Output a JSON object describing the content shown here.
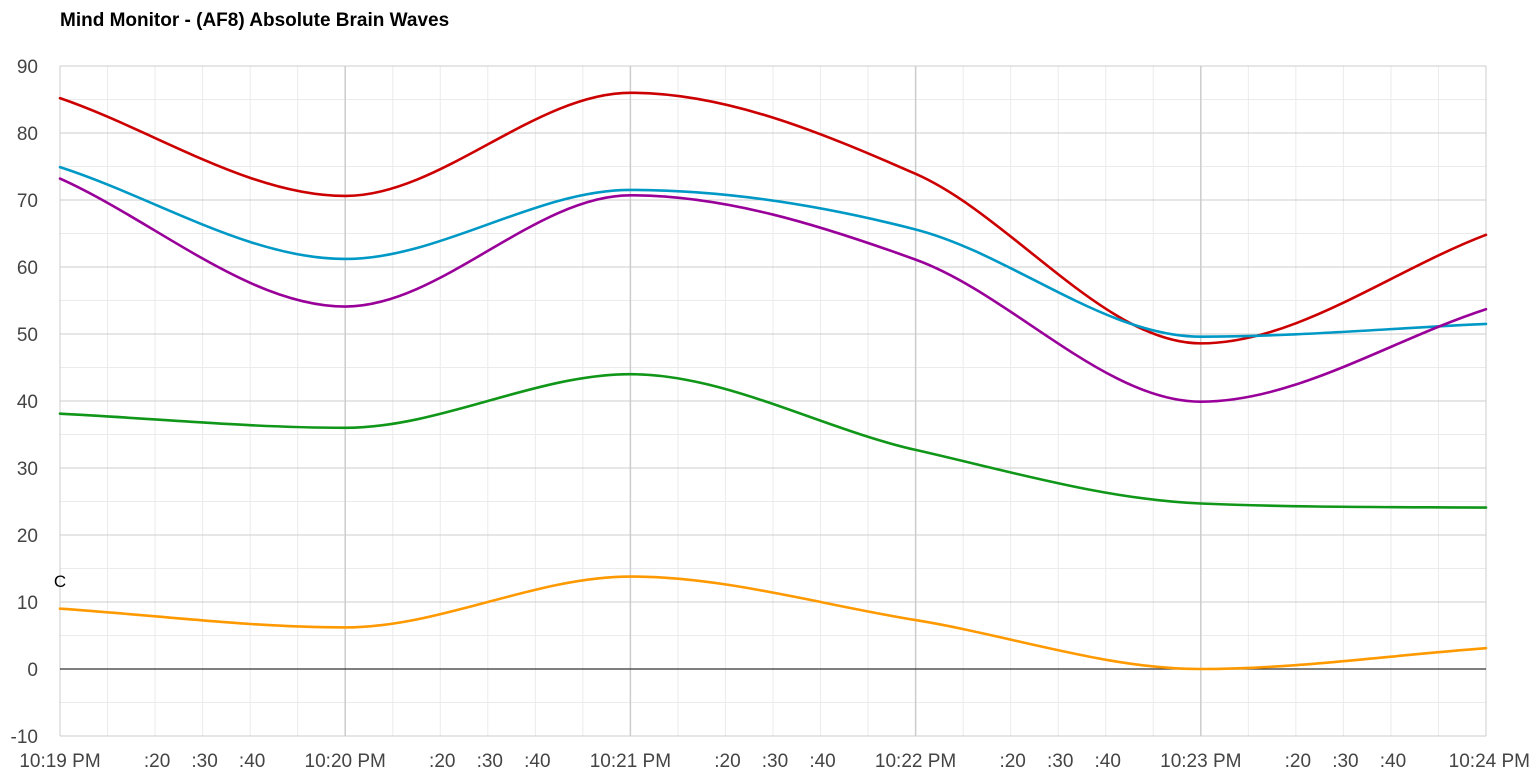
{
  "chart_data": {
    "type": "line",
    "title": "Mind Monitor - (AF8) Absolute Brain Waves",
    "xlabel": "",
    "ylabel": "",
    "ylim": [
      -10,
      90
    ],
    "y_ticks": [
      -10,
      0,
      10,
      20,
      30,
      40,
      50,
      60,
      70,
      80,
      90
    ],
    "y_tick_labels": [
      "-10",
      "0",
      "10",
      "20",
      "30",
      "40",
      "50",
      "60",
      "70",
      "80",
      "90"
    ],
    "xlim_seconds": [
      0,
      300
    ],
    "x_ticks": [
      {
        "t": 0,
        "label": "10:19 PM"
      },
      {
        "t": 20,
        "label": ":20"
      },
      {
        "t": 30,
        "label": ":30"
      },
      {
        "t": 40,
        "label": ":40"
      },
      {
        "t": 60,
        "label": "10:20 PM"
      },
      {
        "t": 80,
        "label": ":20"
      },
      {
        "t": 90,
        "label": ":30"
      },
      {
        "t": 100,
        "label": ":40"
      },
      {
        "t": 120,
        "label": "10:21 PM"
      },
      {
        "t": 140,
        "label": ":20"
      },
      {
        "t": 150,
        "label": ":30"
      },
      {
        "t": 160,
        "label": ":40"
      },
      {
        "t": 180,
        "label": "10:22 PM"
      },
      {
        "t": 200,
        "label": ":20"
      },
      {
        "t": 210,
        "label": ":30"
      },
      {
        "t": 220,
        "label": ":40"
      },
      {
        "t": 240,
        "label": "10:23 PM"
      },
      {
        "t": 260,
        "label": ":20"
      },
      {
        "t": 270,
        "label": ":30"
      },
      {
        "t": 280,
        "label": ":40"
      },
      {
        "t": 300,
        "label": "10:24 PM"
      }
    ],
    "minor_gridlines_every_seconds": 10,
    "minor_gridlines_every_value": 5,
    "major_vertical_gridlines_seconds": [
      60,
      120,
      180,
      240
    ],
    "x": [
      "10:19:00 PM",
      "10:20:00 PM",
      "10:21:00 PM",
      "10:22:00 PM",
      "10:23:00 PM",
      "10:24:00 PM"
    ],
    "series": [
      {
        "color": "#cc0000",
        "values": [
          85.2,
          70.6,
          86.0,
          73.9,
          48.6,
          64.8
        ]
      },
      {
        "color": "#0099c6",
        "values": [
          74.9,
          61.2,
          71.5,
          65.6,
          49.6,
          51.5
        ]
      },
      {
        "color": "#990099",
        "values": [
          73.2,
          54.1,
          70.7,
          61.1,
          39.9,
          53.7
        ]
      },
      {
        "color": "#109618",
        "values": [
          38.1,
          36.0,
          44.0,
          32.7,
          24.7,
          24.1
        ]
      },
      {
        "color": "#ff9900",
        "values": [
          9.0,
          6.2,
          13.8,
          7.3,
          0.0,
          3.1
        ]
      }
    ],
    "annotations": [
      {
        "t": 0,
        "value": 10,
        "text": "C"
      }
    ],
    "grid": true,
    "legend": "none",
    "zero_line_color": "#333333",
    "major_grid_color": "#cccccc",
    "minor_grid_color": "#ebebeb"
  }
}
